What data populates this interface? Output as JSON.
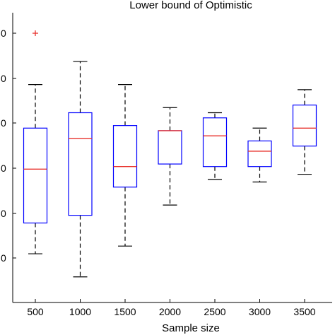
{
  "chart_data": {
    "type": "boxplot",
    "title": "Lower bound of Optimistic",
    "xlabel": "Sample size",
    "ylabel": "",
    "categories": [
      "500",
      "1000",
      "1500",
      "2000",
      "2500",
      "3000",
      "3500"
    ],
    "y_tick_labels": [
      "0",
      "0",
      "0",
      "0",
      "0",
      "0"
    ],
    "ylim": [
      -0.05,
      1.08
    ],
    "boxes": [
      {
        "category": "500",
        "whisker_low": 0.14,
        "q1": 0.26,
        "median": 0.47,
        "q3": 0.63,
        "whisker_high": 0.8,
        "outliers": [
          1.0
        ]
      },
      {
        "category": "1000",
        "whisker_low": 0.05,
        "q1": 0.29,
        "median": 0.59,
        "q3": 0.69,
        "whisker_high": 0.89,
        "outliers": []
      },
      {
        "category": "1500",
        "whisker_low": 0.17,
        "q1": 0.4,
        "median": 0.48,
        "q3": 0.64,
        "whisker_high": 0.8,
        "outliers": []
      },
      {
        "category": "2000",
        "whisker_low": 0.33,
        "q1": 0.49,
        "median": 0.62,
        "q3": 0.62,
        "whisker_high": 0.71,
        "outliers": []
      },
      {
        "category": "2500",
        "whisker_low": 0.43,
        "q1": 0.48,
        "median": 0.6,
        "q3": 0.67,
        "whisker_high": 0.69,
        "outliers": []
      },
      {
        "category": "3000",
        "whisker_low": 0.42,
        "q1": 0.48,
        "median": 0.54,
        "q3": 0.58,
        "whisker_high": 0.63,
        "outliers": []
      },
      {
        "category": "3500",
        "whisker_low": 0.45,
        "q1": 0.56,
        "median": 0.63,
        "q3": 0.72,
        "whisker_high": 0.78,
        "outliers": []
      }
    ],
    "colors": {
      "box": "#0000ff",
      "median": "#e8332e",
      "whisker": "#000000",
      "outlier": "#e8332e"
    },
    "grid": false,
    "legend": "none"
  }
}
